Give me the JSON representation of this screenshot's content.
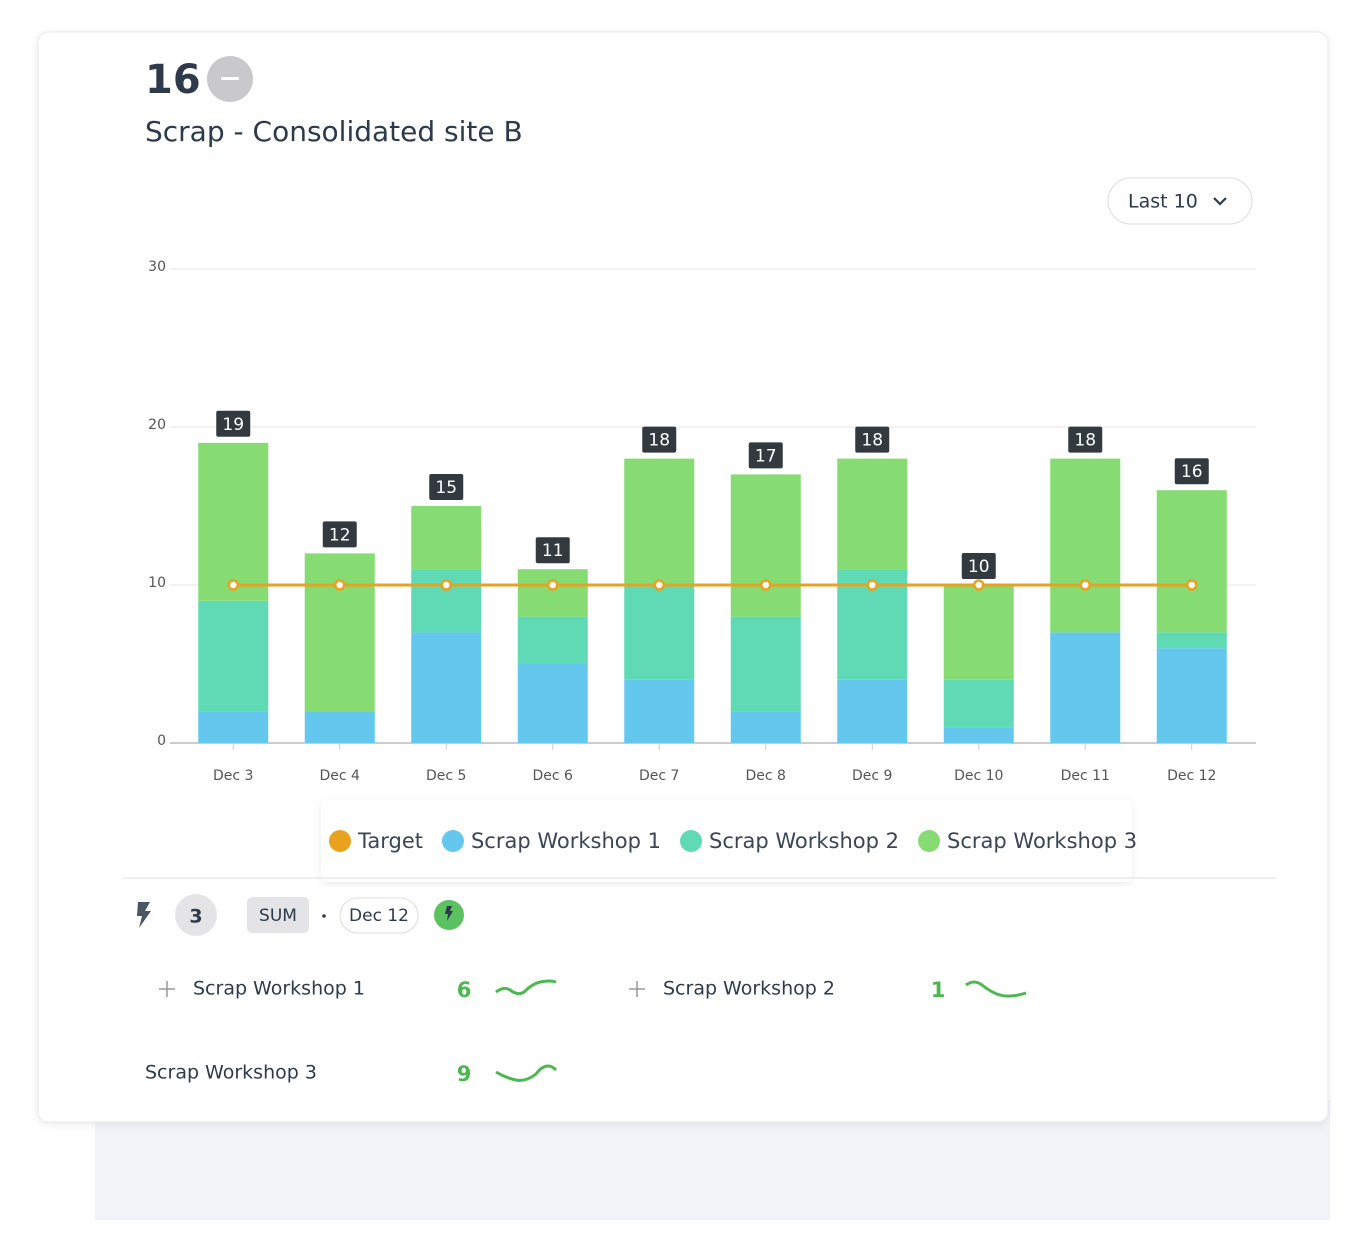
{
  "header": {
    "value": 16,
    "title": "Scrap - Consolidated site B",
    "range": "Last 10"
  },
  "chart_data": {
    "type": "bar",
    "stacked": true,
    "categories": [
      "Dec 3",
      "Dec 4",
      "Dec 5",
      "Dec 6",
      "Dec 7",
      "Dec 8",
      "Dec 9",
      "Dec 10",
      "Dec 11",
      "Dec 12"
    ],
    "series": [
      {
        "name": "Target",
        "type": "line",
        "color": "#e8a21f",
        "values": [
          10,
          10,
          10,
          10,
          10,
          10,
          10,
          10,
          10,
          10
        ]
      },
      {
        "name": "Scrap Workshop 1",
        "color": "#63c7ee",
        "values": [
          2,
          2,
          7,
          5,
          4,
          2,
          4,
          1,
          7,
          6
        ]
      },
      {
        "name": "Scrap Workshop 2",
        "color": "#60d9b5",
        "values": [
          7,
          0,
          4,
          3,
          6,
          6,
          7,
          3,
          0,
          1
        ]
      },
      {
        "name": "Scrap Workshop 3",
        "color": "#86dc72",
        "values": [
          10,
          10,
          4,
          3,
          8,
          9,
          7,
          6,
          11,
          9
        ]
      }
    ],
    "totals": [
      19,
      12,
      15,
      11,
      18,
      17,
      18,
      10,
      18,
      16
    ],
    "ylim": [
      0,
      30
    ],
    "yticks": [
      0,
      10,
      20,
      30
    ],
    "grid": true
  },
  "breakdown": {
    "count": 3,
    "aggregation": "SUM",
    "date": "Dec 12",
    "items": [
      {
        "name": "Scrap Workshop 1",
        "value": 6
      },
      {
        "name": "Scrap Workshop 2",
        "value": 1
      },
      {
        "name": "Scrap Workshop 3",
        "value": 9
      }
    ]
  }
}
